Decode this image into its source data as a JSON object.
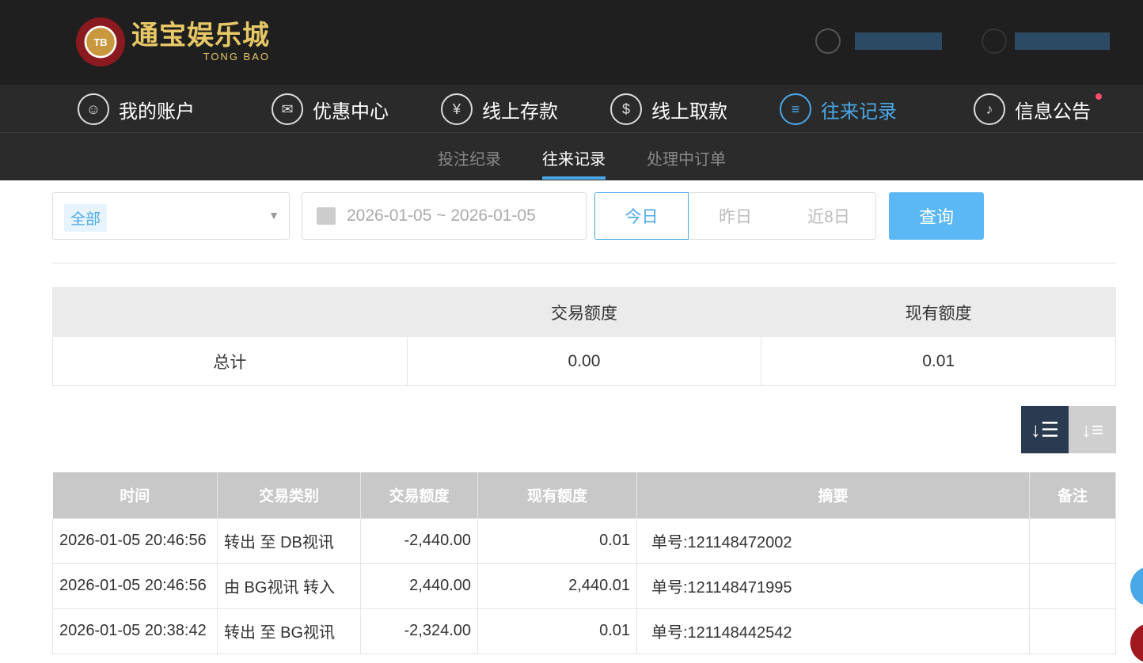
{
  "header": {
    "logo_cn": "通宝娱乐城",
    "logo_en": "TONG BAO",
    "logo_chip": "TB"
  },
  "nav": [
    {
      "label": "我的账户",
      "icon": "user-icon"
    },
    {
      "label": "优惠中心",
      "icon": "gift-icon"
    },
    {
      "label": "线上存款",
      "icon": "deposit-icon"
    },
    {
      "label": "线上取款",
      "icon": "withdraw-icon"
    },
    {
      "label": "往来记录",
      "icon": "records-icon",
      "active": true
    },
    {
      "label": "信息公告",
      "icon": "bell-icon",
      "badge": true
    }
  ],
  "subnav": [
    {
      "label": "投注纪录"
    },
    {
      "label": "往来记录",
      "active": true
    },
    {
      "label": "处理中订单"
    }
  ],
  "filter": {
    "type_value": "全部",
    "date_range": "2026-01-05 ~ 2026-01-05",
    "quick": [
      "今日",
      "昨日",
      "近8日"
    ],
    "query": "查询"
  },
  "summary": {
    "headers": [
      "",
      "交易额度",
      "现有额度"
    ],
    "row": [
      "总计",
      "0.00",
      "0.01"
    ]
  },
  "table": {
    "headers": [
      "时间",
      "交易类别",
      "交易额度",
      "现有额度",
      "摘要",
      "备注"
    ],
    "rows": [
      [
        "2026-01-05 20:46:56",
        "转出 至 DB视讯",
        "-2,440.00",
        "0.01",
        "单号:121148472002",
        ""
      ],
      [
        "2026-01-05 20:46:56",
        "由 BG视讯 转入",
        "2,440.00",
        "2,440.01",
        "单号:121148471995",
        ""
      ],
      [
        "2026-01-05 20:38:42",
        "转出 至 BG视讯",
        "-2,324.00",
        "0.01",
        "单号:121148442542",
        ""
      ]
    ]
  },
  "colors": {
    "accent": "#4aa8e8",
    "header_bg": "#1f1f1f",
    "table_header": "#c8c8c8"
  }
}
